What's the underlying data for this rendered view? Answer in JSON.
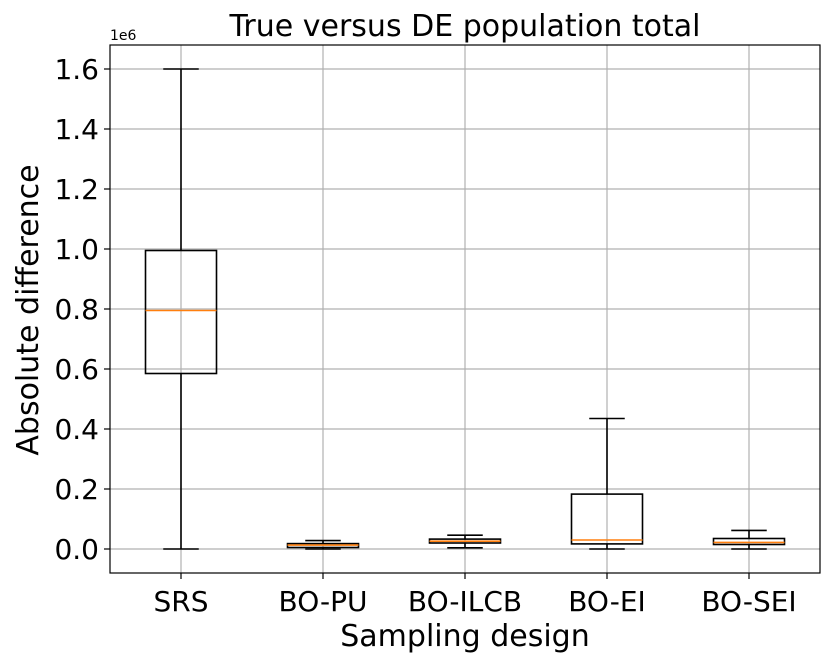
{
  "chart_data": {
    "type": "boxplot",
    "title": "True versus DE population total",
    "xlabel": "Sampling design",
    "ylabel": "Absolute difference",
    "offset_label": "1e6",
    "ylim": [
      -0.08,
      1.68
    ],
    "yticks": [
      0.0,
      0.2,
      0.4,
      0.6,
      0.8,
      1.0,
      1.2,
      1.4,
      1.6
    ],
    "ytick_labels": [
      "0.0",
      "0.2",
      "0.4",
      "0.6",
      "0.8",
      "1.0",
      "1.2",
      "1.4",
      "1.6"
    ],
    "grid": true,
    "categories": [
      "SRS",
      "BO-PU",
      "BO-ILCB",
      "BO-EI",
      "BO-SEI"
    ],
    "boxes": [
      {
        "label": "SRS",
        "whisker_low": 0.0,
        "q1": 0.585,
        "median": 0.795,
        "q3": 0.995,
        "whisker_high": 1.6
      },
      {
        "label": "BO-PU",
        "whisker_low": 0.0,
        "q1": 0.005,
        "median": 0.013,
        "q3": 0.018,
        "whisker_high": 0.028
      },
      {
        "label": "BO-ILCB",
        "whisker_low": 0.004,
        "q1": 0.02,
        "median": 0.026,
        "q3": 0.033,
        "whisker_high": 0.046
      },
      {
        "label": "BO-EI",
        "whisker_low": 0.0,
        "q1": 0.017,
        "median": 0.03,
        "q3": 0.183,
        "whisker_high": 0.435
      },
      {
        "label": "BO-SEI",
        "whisker_low": 0.0,
        "q1": 0.015,
        "median": 0.022,
        "q3": 0.035,
        "whisker_high": 0.062
      }
    ],
    "colors": {
      "box": "#000000",
      "median": "#ff7f0e",
      "grid": "#b0b0b0"
    }
  }
}
